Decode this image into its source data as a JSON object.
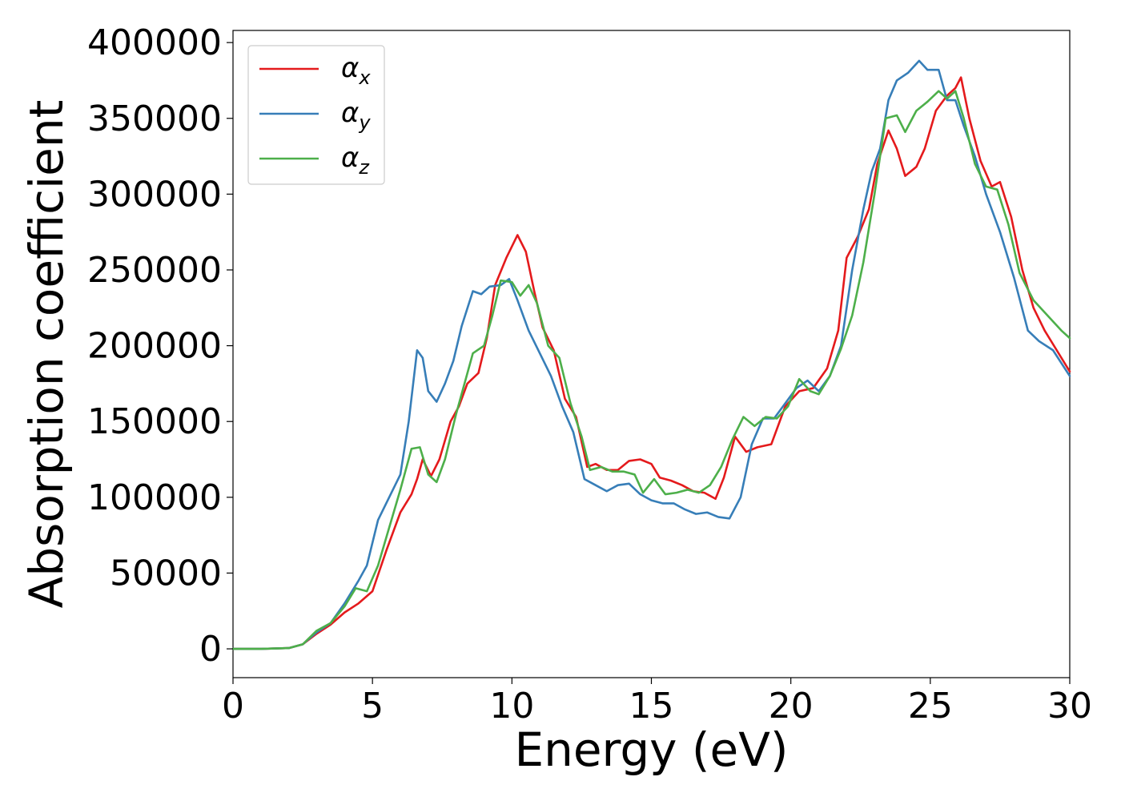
{
  "chart_data": {
    "type": "line",
    "title": "",
    "xlabel": "Energy (eV)",
    "ylabel": "Absorption coefficient",
    "xlim": [
      0,
      30
    ],
    "ylim": [
      -19000,
      408000
    ],
    "xticks": [
      0,
      5,
      10,
      15,
      20,
      25,
      30
    ],
    "yticks": [
      0,
      50000,
      100000,
      150000,
      200000,
      250000,
      300000,
      350000,
      400000
    ],
    "xtick_labels": [
      "0",
      "5",
      "10",
      "15",
      "20",
      "25",
      "30"
    ],
    "ytick_labels": [
      "0",
      "50000",
      "100000",
      "150000",
      "200000",
      "250000",
      "300000",
      "350000",
      "400000"
    ],
    "grid": false,
    "legend_position": "top-left",
    "series": [
      {
        "name": "α",
        "subscript": "x",
        "color": "#e41a1c",
        "points": [
          [
            0,
            0
          ],
          [
            1,
            0
          ],
          [
            2,
            500
          ],
          [
            2.5,
            3000
          ],
          [
            3,
            10000
          ],
          [
            3.5,
            16000
          ],
          [
            4,
            24000
          ],
          [
            4.5,
            30000
          ],
          [
            5,
            38000
          ],
          [
            5.5,
            65000
          ],
          [
            6,
            90000
          ],
          [
            6.4,
            102000
          ],
          [
            6.6,
            112000
          ],
          [
            6.8,
            125000
          ],
          [
            7.1,
            114000
          ],
          [
            7.4,
            125000
          ],
          [
            7.8,
            150000
          ],
          [
            8.1,
            160000
          ],
          [
            8.4,
            175000
          ],
          [
            8.8,
            182000
          ],
          [
            9.1,
            205000
          ],
          [
            9.4,
            240000
          ],
          [
            9.8,
            258000
          ],
          [
            10.2,
            273000
          ],
          [
            10.5,
            262000
          ],
          [
            10.8,
            236000
          ],
          [
            11.1,
            212000
          ],
          [
            11.5,
            197000
          ],
          [
            11.9,
            165000
          ],
          [
            12.3,
            153000
          ],
          [
            12.7,
            120000
          ],
          [
            13.0,
            122000
          ],
          [
            13.4,
            118000
          ],
          [
            13.8,
            118000
          ],
          [
            14.2,
            124000
          ],
          [
            14.6,
            125000
          ],
          [
            15.0,
            122000
          ],
          [
            15.3,
            113000
          ],
          [
            15.7,
            111000
          ],
          [
            16.1,
            108000
          ],
          [
            16.5,
            104000
          ],
          [
            16.9,
            103000
          ],
          [
            17.3,
            99000
          ],
          [
            17.6,
            113000
          ],
          [
            18.0,
            140000
          ],
          [
            18.4,
            130000
          ],
          [
            18.8,
            133000
          ],
          [
            19.3,
            135000
          ],
          [
            19.8,
            160000
          ],
          [
            20.3,
            170000
          ],
          [
            20.8,
            172000
          ],
          [
            21.3,
            185000
          ],
          [
            21.7,
            210000
          ],
          [
            22.0,
            258000
          ],
          [
            22.4,
            272000
          ],
          [
            22.8,
            290000
          ],
          [
            23.1,
            320000
          ],
          [
            23.5,
            342000
          ],
          [
            23.8,
            330000
          ],
          [
            24.1,
            312000
          ],
          [
            24.5,
            318000
          ],
          [
            24.8,
            330000
          ],
          [
            25.2,
            355000
          ],
          [
            25.6,
            365000
          ],
          [
            25.9,
            370000
          ],
          [
            26.1,
            377000
          ],
          [
            26.4,
            350000
          ],
          [
            26.8,
            322000
          ],
          [
            27.2,
            305000
          ],
          [
            27.5,
            308000
          ],
          [
            27.9,
            285000
          ],
          [
            28.3,
            250000
          ],
          [
            28.7,
            225000
          ],
          [
            29.1,
            210000
          ],
          [
            29.5,
            198000
          ],
          [
            30,
            183000
          ]
        ]
      },
      {
        "name": "α",
        "subscript": "y",
        "color": "#377eb8",
        "points": [
          [
            0,
            0
          ],
          [
            1,
            0
          ],
          [
            2,
            500
          ],
          [
            2.5,
            3000
          ],
          [
            3,
            11000
          ],
          [
            3.5,
            17000
          ],
          [
            4,
            30000
          ],
          [
            4.5,
            45000
          ],
          [
            4.8,
            55000
          ],
          [
            5.2,
            85000
          ],
          [
            5.6,
            100000
          ],
          [
            6.0,
            115000
          ],
          [
            6.3,
            150000
          ],
          [
            6.6,
            197000
          ],
          [
            6.8,
            192000
          ],
          [
            7.0,
            170000
          ],
          [
            7.3,
            163000
          ],
          [
            7.6,
            175000
          ],
          [
            7.9,
            190000
          ],
          [
            8.2,
            213000
          ],
          [
            8.6,
            236000
          ],
          [
            8.9,
            234000
          ],
          [
            9.2,
            239000
          ],
          [
            9.6,
            240000
          ],
          [
            9.9,
            244000
          ],
          [
            10.2,
            230000
          ],
          [
            10.6,
            210000
          ],
          [
            11.0,
            195000
          ],
          [
            11.4,
            180000
          ],
          [
            11.8,
            160000
          ],
          [
            12.2,
            143000
          ],
          [
            12.6,
            112000
          ],
          [
            13.0,
            108000
          ],
          [
            13.4,
            104000
          ],
          [
            13.8,
            108000
          ],
          [
            14.2,
            109000
          ],
          [
            14.6,
            102000
          ],
          [
            15.0,
            98000
          ],
          [
            15.4,
            96000
          ],
          [
            15.8,
            96000
          ],
          [
            16.2,
            92000
          ],
          [
            16.6,
            89000
          ],
          [
            17.0,
            90000
          ],
          [
            17.4,
            87000
          ],
          [
            17.8,
            86000
          ],
          [
            18.2,
            100000
          ],
          [
            18.6,
            135000
          ],
          [
            19.0,
            152000
          ],
          [
            19.4,
            152000
          ],
          [
            19.8,
            162000
          ],
          [
            20.2,
            172000
          ],
          [
            20.6,
            177000
          ],
          [
            21.0,
            170000
          ],
          [
            21.4,
            180000
          ],
          [
            21.8,
            200000
          ],
          [
            22.2,
            250000
          ],
          [
            22.6,
            290000
          ],
          [
            22.9,
            315000
          ],
          [
            23.2,
            330000
          ],
          [
            23.5,
            362000
          ],
          [
            23.8,
            375000
          ],
          [
            24.2,
            380000
          ],
          [
            24.6,
            388000
          ],
          [
            24.9,
            382000
          ],
          [
            25.3,
            382000
          ],
          [
            25.6,
            362000
          ],
          [
            25.9,
            362000
          ],
          [
            26.2,
            345000
          ],
          [
            26.6,
            325000
          ],
          [
            27.0,
            300000
          ],
          [
            27.5,
            275000
          ],
          [
            28.0,
            245000
          ],
          [
            28.5,
            210000
          ],
          [
            28.9,
            203000
          ],
          [
            29.4,
            197000
          ],
          [
            30,
            180000
          ]
        ]
      },
      {
        "name": "α",
        "subscript": "z",
        "color": "#4daf4a",
        "points": [
          [
            0,
            0
          ],
          [
            1,
            0
          ],
          [
            2,
            500
          ],
          [
            2.5,
            3000
          ],
          [
            3,
            12000
          ],
          [
            3.5,
            17000
          ],
          [
            4,
            28000
          ],
          [
            4.4,
            40000
          ],
          [
            4.8,
            38000
          ],
          [
            5.2,
            55000
          ],
          [
            5.6,
            80000
          ],
          [
            6.0,
            105000
          ],
          [
            6.4,
            132000
          ],
          [
            6.7,
            133000
          ],
          [
            7.0,
            115000
          ],
          [
            7.3,
            110000
          ],
          [
            7.6,
            125000
          ],
          [
            8.0,
            155000
          ],
          [
            8.3,
            175000
          ],
          [
            8.6,
            195000
          ],
          [
            9.0,
            200000
          ],
          [
            9.3,
            220000
          ],
          [
            9.6,
            243000
          ],
          [
            10.0,
            242000
          ],
          [
            10.3,
            233000
          ],
          [
            10.6,
            240000
          ],
          [
            10.9,
            228000
          ],
          [
            11.3,
            200000
          ],
          [
            11.7,
            192000
          ],
          [
            12.1,
            162000
          ],
          [
            12.5,
            140000
          ],
          [
            12.8,
            118000
          ],
          [
            13.2,
            120000
          ],
          [
            13.6,
            117000
          ],
          [
            14.0,
            117000
          ],
          [
            14.4,
            115000
          ],
          [
            14.7,
            103000
          ],
          [
            15.1,
            112000
          ],
          [
            15.5,
            102000
          ],
          [
            15.9,
            103000
          ],
          [
            16.3,
            105000
          ],
          [
            16.7,
            103000
          ],
          [
            17.1,
            108000
          ],
          [
            17.5,
            120000
          ],
          [
            17.9,
            138000
          ],
          [
            18.3,
            153000
          ],
          [
            18.7,
            147000
          ],
          [
            19.1,
            153000
          ],
          [
            19.5,
            152000
          ],
          [
            19.9,
            160000
          ],
          [
            20.3,
            178000
          ],
          [
            20.7,
            170000
          ],
          [
            21.0,
            168000
          ],
          [
            21.4,
            180000
          ],
          [
            21.8,
            198000
          ],
          [
            22.2,
            220000
          ],
          [
            22.6,
            255000
          ],
          [
            23.0,
            300000
          ],
          [
            23.4,
            350000
          ],
          [
            23.8,
            352000
          ],
          [
            24.1,
            341000
          ],
          [
            24.5,
            355000
          ],
          [
            24.9,
            361000
          ],
          [
            25.3,
            368000
          ],
          [
            25.6,
            363000
          ],
          [
            25.9,
            368000
          ],
          [
            26.2,
            350000
          ],
          [
            26.6,
            320000
          ],
          [
            27.0,
            305000
          ],
          [
            27.4,
            303000
          ],
          [
            27.8,
            280000
          ],
          [
            28.2,
            248000
          ],
          [
            28.7,
            230000
          ],
          [
            29.2,
            220000
          ],
          [
            29.7,
            210000
          ],
          [
            30,
            205000
          ]
        ]
      }
    ]
  }
}
